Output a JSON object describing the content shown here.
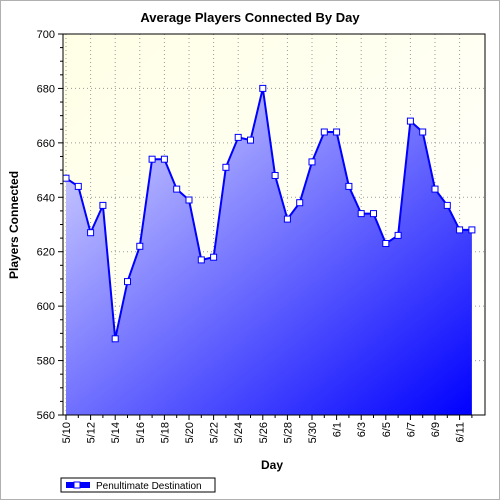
{
  "chart_data": {
    "type": "area",
    "title": "Average Players Connected By Day",
    "xlabel": "Day",
    "ylabel": "Players Connected",
    "ylim": [
      560,
      700
    ],
    "yticks": [
      "560",
      "580",
      "600",
      "620",
      "640",
      "660",
      "680",
      "700"
    ],
    "x": [
      "5/10",
      "5/11",
      "5/12",
      "5/13",
      "5/14",
      "5/15",
      "5/16",
      "5/17",
      "5/18",
      "5/19",
      "5/20",
      "5/21",
      "5/22",
      "5/23",
      "5/24",
      "5/25",
      "5/26",
      "5/27",
      "5/28",
      "5/29",
      "5/30",
      "5/31",
      "6/1",
      "6/2",
      "6/3",
      "6/4",
      "6/5",
      "6/6",
      "6/7",
      "6/8",
      "6/9",
      "6/10",
      "6/11",
      "6/12"
    ],
    "xtick_labels": [
      "5/10",
      "5/12",
      "5/14",
      "5/16",
      "5/18",
      "5/20",
      "5/22",
      "5/24",
      "5/26",
      "5/28",
      "5/30",
      "6/1",
      "6/3",
      "6/5",
      "6/7",
      "6/9",
      "6/11"
    ],
    "series": [
      {
        "name": "Penultimate Destination",
        "values": [
          647,
          644,
          627,
          637,
          588,
          609,
          622,
          654,
          654,
          643,
          639,
          617,
          618,
          651,
          662,
          661,
          680,
          648,
          632,
          638,
          653,
          664,
          664,
          644,
          634,
          634,
          623,
          626,
          668,
          664,
          643,
          637,
          628,
          628
        ],
        "color": "#0000ff"
      }
    ],
    "grid": true,
    "legend": "bottom-left",
    "colors": {
      "plot_background_top": "#ffffe6",
      "area_light": "#d8d8ff",
      "area_dark": "#0000ff",
      "line": "#0000ff",
      "marker_fill": "#ffffff"
    }
  }
}
